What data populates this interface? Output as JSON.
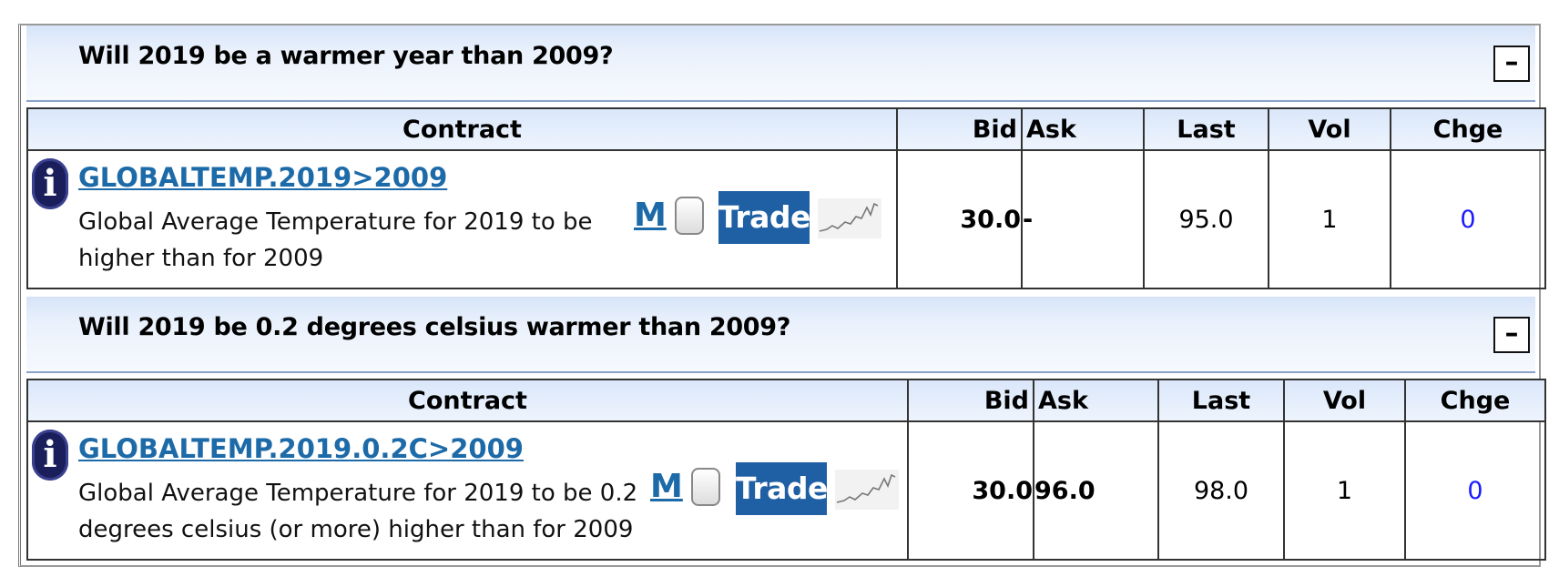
{
  "markets": [
    {
      "question": "Will 2019 be a warmer year than 2009?",
      "collapse_label": "–",
      "columns": {
        "contract": "Contract",
        "bid": "Bid",
        "ask": "Ask",
        "last": "Last",
        "vol": "Vol",
        "chge": "Chge"
      },
      "contract": {
        "symbol": "GLOBALTEMP.2019>2009",
        "description_line1": "Global Average Temperature for 2019 to be",
        "description_line2": "higher than for 2009",
        "m_label": "M",
        "trade_label": "Trade",
        "bid": "30.0",
        "ask": "-",
        "last": "95.0",
        "vol": "1",
        "chge": "0"
      }
    },
    {
      "question": "Will 2019 be 0.2 degrees celsius warmer than 2009?",
      "collapse_label": "–",
      "columns": {
        "contract": "Contract",
        "bid": "Bid",
        "ask": "Ask",
        "last": "Last",
        "vol": "Vol",
        "chge": "Chge"
      },
      "contract": {
        "symbol": "GLOBALTEMP.2019.0.2C>2009",
        "description_line1": "Global Average Temperature for 2019 to be 0.2",
        "description_line2": "degrees celsius (or more) higher than for 2009",
        "m_label": "M",
        "trade_label": "Trade",
        "bid": "30.0",
        "ask": "96.0",
        "last": "98.0",
        "vol": "1",
        "chge": "0"
      }
    }
  ],
  "colors": {
    "link": "#1d6aa8",
    "trade_button": "#1f5fa3",
    "change": "#1a1aff",
    "header_bg": "#d6e4f8"
  },
  "icons": {
    "info": "info-icon",
    "chart": "sparkline-chart-icon",
    "collapse": "collapse-minus-icon"
  }
}
